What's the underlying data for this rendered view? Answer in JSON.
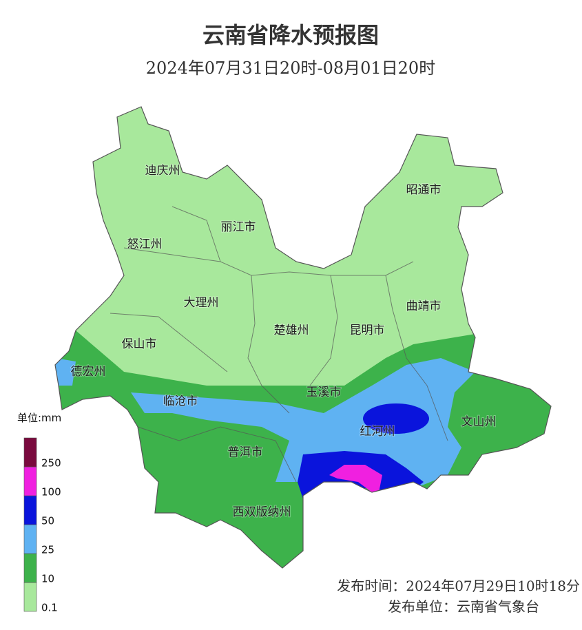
{
  "title": "云南省降水预报图",
  "subtitle": "2024年07月31日20时-08月01日20时",
  "regions": [
    "迪庆州",
    "丽江市",
    "怒江州",
    "昭通市",
    "大理州",
    "曲靖市",
    "保山市",
    "楚雄州",
    "昆明市",
    "德宏州",
    "玉溪市",
    "临沧市",
    "红河州",
    "文山州",
    "普洱市",
    "西双版纳州"
  ],
  "legend": {
    "unit": "单位:mm",
    "items": [
      {
        "label": "0.1",
        "color": "#a8e89c"
      },
      {
        "label": "10",
        "color": "#3db24b"
      },
      {
        "label": "25",
        "color": "#5fb2f2"
      },
      {
        "label": "50",
        "color": "#0a14dc"
      },
      {
        "label": "100",
        "color": "#f020e0"
      },
      {
        "label": "250",
        "color": "#7a0a3e"
      }
    ]
  },
  "footer": {
    "issue_time": "发布时间：2024年07月29日10时18分",
    "issuer": "发布单位：云南省气象台"
  }
}
